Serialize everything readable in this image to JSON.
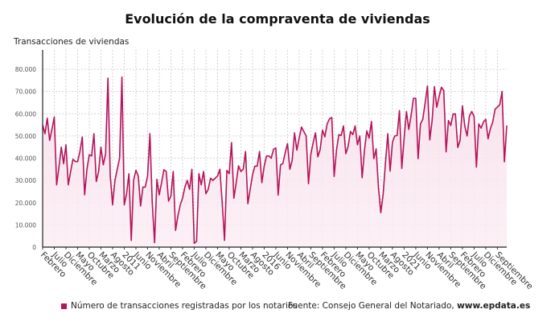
{
  "title": "Evolución de la compraventa de viviendas",
  "ylabel": "Transacciones de viviendas",
  "legend_label": "Número de transacciones registradas por los notarios",
  "source_prefix": "Fuente: Consejo General del Notariado, ",
  "source_site": "www.epdata.es",
  "colors": {
    "line": "#b5135a",
    "fill": "#f7dde9",
    "grid": "#c8c8c8"
  },
  "chart_data": {
    "type": "area",
    "title": "Evolución de la compraventa de viviendas",
    "ylabel": "Transacciones de viviendas",
    "xlabel": "",
    "ylim": [
      0,
      80000
    ],
    "y_ticks": [
      0,
      10000,
      20000,
      30000,
      40000,
      50000,
      60000,
      70000,
      80000
    ],
    "y_tick_labels": [
      "0",
      "10.000",
      "20.000",
      "30.000",
      "40.000",
      "50.000",
      "60.000",
      "70.000",
      "80.000"
    ],
    "x_tick_labels": [
      "Febrero",
      "Julio",
      "Diciembre",
      "Mayo",
      "Octubre",
      "Marzo",
      "Agosto",
      "2011",
      "Junio",
      "Noviembre",
      "Abril",
      "Septiembre",
      "Febrero",
      "Julio",
      "Diciembre",
      "Mayo",
      "Octubre",
      "Marzo",
      "Agosto",
      "2016",
      "Junio",
      "Noviembre",
      "Abril",
      "Septiembre",
      "Febrero",
      "Julio",
      "Diciembre",
      "Mayo",
      "Octubre",
      "Marzo",
      "Agosto",
      "2021",
      "Junio",
      "Noviembre",
      "Abril",
      "Septiembre",
      "Febrero",
      "Julio",
      "Diciembre",
      "Septiembre"
    ],
    "grid": true,
    "legend": "bottom-left",
    "series": [
      {
        "name": "Número de transacciones registradas por los notarios",
        "values": [
          55000,
          51000,
          58000,
          48000,
          53000,
          58500,
          28000,
          36000,
          45000,
          37500,
          46000,
          28000,
          34000,
          39500,
          38500,
          38500,
          43000,
          49500,
          23500,
          35000,
          41500,
          41000,
          51000,
          29500,
          34000,
          45000,
          37000,
          42000,
          76000,
          32000,
          19000,
          30000,
          35000,
          40000,
          76500,
          19000,
          24000,
          33000,
          3000,
          30000,
          34500,
          32000,
          18500,
          27000,
          27000,
          32000,
          51000,
          20000,
          2000,
          30500,
          23500,
          29000,
          34800,
          34000,
          20700,
          23000,
          34000,
          7500,
          14000,
          19000,
          22000,
          27000,
          30000,
          26000,
          35000,
          1700,
          2600,
          33000,
          28000,
          34000,
          24000,
          26000,
          31000,
          30000,
          31000,
          32000,
          35000,
          20000,
          3000,
          34500,
          33000,
          47000,
          22000,
          29000,
          36600,
          34000,
          35000,
          43000,
          19500,
          26000,
          32500,
          36400,
          36400,
          43000,
          29000,
          36400,
          41000,
          41000,
          40000,
          44000,
          44600,
          23400,
          37000,
          37600,
          42400,
          46600,
          35000,
          39000,
          51400,
          43600,
          49000,
          54000,
          52000,
          50000,
          28500,
          41800,
          47000,
          51400,
          40600,
          43900,
          52600,
          49600,
          55400,
          57700,
          58300,
          31800,
          43600,
          50600,
          50200,
          54500,
          42000,
          45400,
          52000,
          50600,
          54500,
          46000,
          50000,
          31200,
          43600,
          52300,
          49000,
          56500,
          39800,
          44200,
          26700,
          15500,
          23700,
          38000,
          51000,
          34200,
          47200,
          50000,
          50200,
          61400,
          35400,
          49000,
          61000,
          52900,
          59300,
          66900,
          66900,
          39800,
          55400,
          57500,
          64700,
          72500,
          48200,
          56900,
          72200,
          62900,
          67700,
          71900,
          70400,
          42800,
          56900,
          54700,
          59900,
          59900,
          44800,
          48000,
          63500,
          54500,
          50000,
          59000,
          61000,
          58700,
          36000,
          55400,
          53500,
          56300,
          57500,
          48700,
          53300,
          56300,
          62000,
          63000,
          64000,
          70000,
          38400,
          54700
        ]
      }
    ]
  }
}
